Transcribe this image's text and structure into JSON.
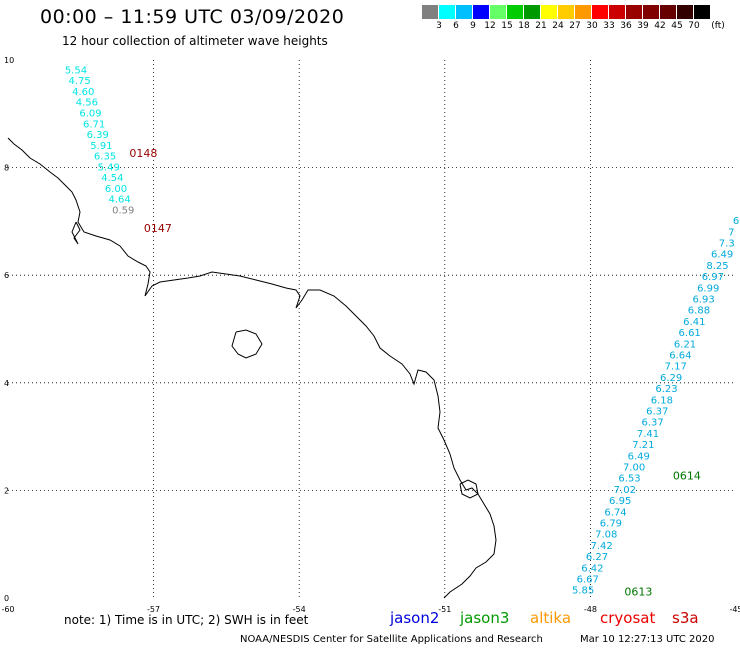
{
  "header": {
    "title": "00:00 – 11:59 UTC 03/09/2020",
    "subtitle": "12 hour collection of altimeter wave heights"
  },
  "colorbar": {
    "colors": [
      "#808080",
      "#00ffff",
      "#00bfff",
      "#0000ff",
      "#66ff66",
      "#00cc00",
      "#009900",
      "#ffff00",
      "#ffcc00",
      "#ff9900",
      "#ff0000",
      "#cc0000",
      "#990000",
      "#800000",
      "#660000",
      "#330000",
      "#000000"
    ],
    "labels": [
      "3",
      "6",
      "9",
      "12",
      "15",
      "18",
      "21",
      "24",
      "27",
      "30",
      "33",
      "36",
      "39",
      "42",
      "45",
      "70",
      "(ft)"
    ]
  },
  "axes": {
    "lon_ticks": [
      "-60",
      "-57",
      "-54",
      "-51",
      "-48",
      "-45"
    ],
    "lat_ticks": [
      "0",
      "2",
      "4",
      "6",
      "8",
      "10"
    ],
    "lon_range": [
      -60,
      -45
    ],
    "lat_range": [
      0,
      10
    ]
  },
  "tracks": {
    "west": {
      "color": "#00e5e5",
      "values": [
        "5.54",
        "4.75",
        "4.60",
        "4.56",
        "6.09",
        "6.71",
        "6.39",
        "5.91",
        "6.35",
        "5.49",
        "4.54",
        "6.00",
        "4.64"
      ],
      "last_value": "0.59",
      "last_color": "#808080",
      "time_labels": [
        {
          "text": "0148",
          "lon": -57.5,
          "lat": 8.2,
          "color": "#990000"
        },
        {
          "text": "0147",
          "lon": -57.2,
          "lat": 6.8,
          "color": "#990000"
        }
      ]
    },
    "east": {
      "color": "#00aadd",
      "values": [
        "6",
        "7",
        "7.3",
        "6.49",
        "8.25",
        "6.97",
        "6.99",
        "6.93",
        "6.88",
        "6.41",
        "6.61",
        "6.21",
        "6.64",
        "7.17",
        "6.29",
        "6.23",
        "6.18",
        "6.37",
        "6.37",
        "7.41",
        "7.21",
        "6.49",
        "7.00",
        "6.53",
        "7.02",
        "6.95",
        "6.74",
        "6.79",
        "7.08",
        "7.42",
        "6.27",
        "6.42",
        "6.67",
        "5.85"
      ],
      "time_labels": [
        {
          "text": "0614",
          "lon": -46.3,
          "lat": 2.2,
          "color": "#007700"
        },
        {
          "text": "0613",
          "lon": -47.3,
          "lat": 0.05,
          "color": "#007700"
        }
      ]
    }
  },
  "footer": {
    "note": "note:  1) Time is in UTC; 2) SWH is in feet",
    "satellites": [
      {
        "name": "jason2",
        "color": "#0000dd"
      },
      {
        "name": "jason3",
        "color": "#009900"
      },
      {
        "name": "altika",
        "color": "#ff9900"
      },
      {
        "name": "cryosat",
        "color": "#ee0000"
      },
      {
        "name": "s3a",
        "color": "#cc0000"
      }
    ],
    "credit": "NOAA/NESDIS Center for Satellite Applications and Research",
    "timestamp": "Mar 10 12:27:13 UTC 2020"
  }
}
